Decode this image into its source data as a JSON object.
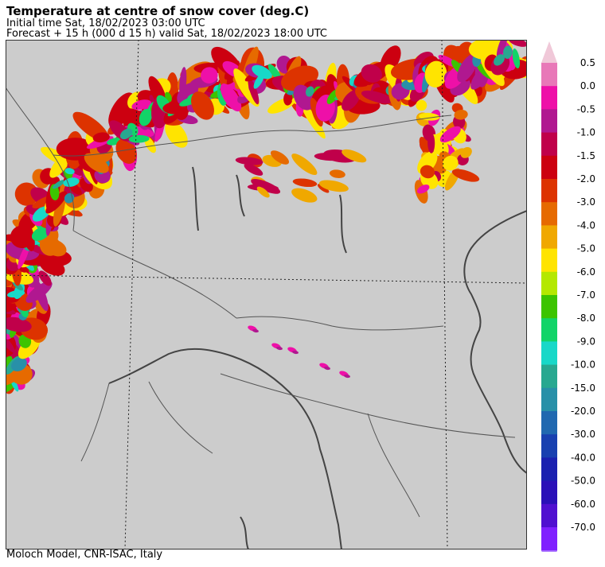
{
  "header": {
    "title": "Temperature at centre of snow cover (deg.C)",
    "initial_time": "Initial time  Sat, 18/02/2023  03:00 UTC",
    "forecast": "Forecast  +  15 h  (000 d 15 h)  valid Sat, 18/02/2023 18:00 UTC"
  },
  "footer": {
    "credit": "Moloch Model, CNR-ISAC, Italy"
  },
  "map": {
    "background_color": "#cccccc",
    "field": "snow-cover temperature over Alps and northern Apennines",
    "colors": {
      "max": "#f0c8d8",
      "lvl_0_5": "#e878b8",
      "lvl_0_0": "#ee10a8",
      "lvl_m0_5": "#b01890",
      "lvl_m1_0": "#c0004a",
      "lvl_m1_5": "#cc0010",
      "lvl_m2_0": "#dd3300",
      "lvl_m3_0": "#e66a00",
      "lvl_m4_0": "#f0a800",
      "lvl_m5_0": "#ffe400",
      "lvl_m6_0": "#b4e800",
      "lvl_m7_0": "#3cc400",
      "lvl_m8_0": "#12d468",
      "lvl_m9_0": "#18d8c8",
      "lvl_m10_0": "#28a890",
      "lvl_m15_0": "#2890a8",
      "lvl_m20_0": "#2068b0",
      "lvl_m30_0": "#1840b0",
      "lvl_m40_0": "#1a20b0",
      "lvl_m50_0": "#2a10b8",
      "lvl_m60_0": "#5010d0",
      "lvl_m70_0": "#8020ff",
      "min": "#b080ff"
    }
  },
  "colorbar": {
    "labels": [
      "0.5",
      "0.0",
      "-0.5",
      "-1.0",
      "-1.5",
      "-2.0",
      "-3.0",
      "-4.0",
      "-5.0",
      "-6.0",
      "-7.0",
      "-8.0",
      "-9.0",
      "-10.0",
      "-15.0",
      "-20.0",
      "-30.0",
      "-40.0",
      "-50.0",
      "-60.0",
      "-70.0"
    ],
    "colors": [
      "#e878b8",
      "#ee10a8",
      "#b01890",
      "#c0004a",
      "#cc0010",
      "#dd3300",
      "#e66a00",
      "#f0a800",
      "#ffe400",
      "#b4e800",
      "#3cc400",
      "#12d468",
      "#18d8c8",
      "#28a890",
      "#2890a8",
      "#2068b0",
      "#1840b0",
      "#1a20b0",
      "#2a10b8",
      "#5010d0",
      "#8020ff"
    ],
    "top_arrow_color": "#f0c8d8",
    "bottom_arrow_color": "#b080ff"
  }
}
